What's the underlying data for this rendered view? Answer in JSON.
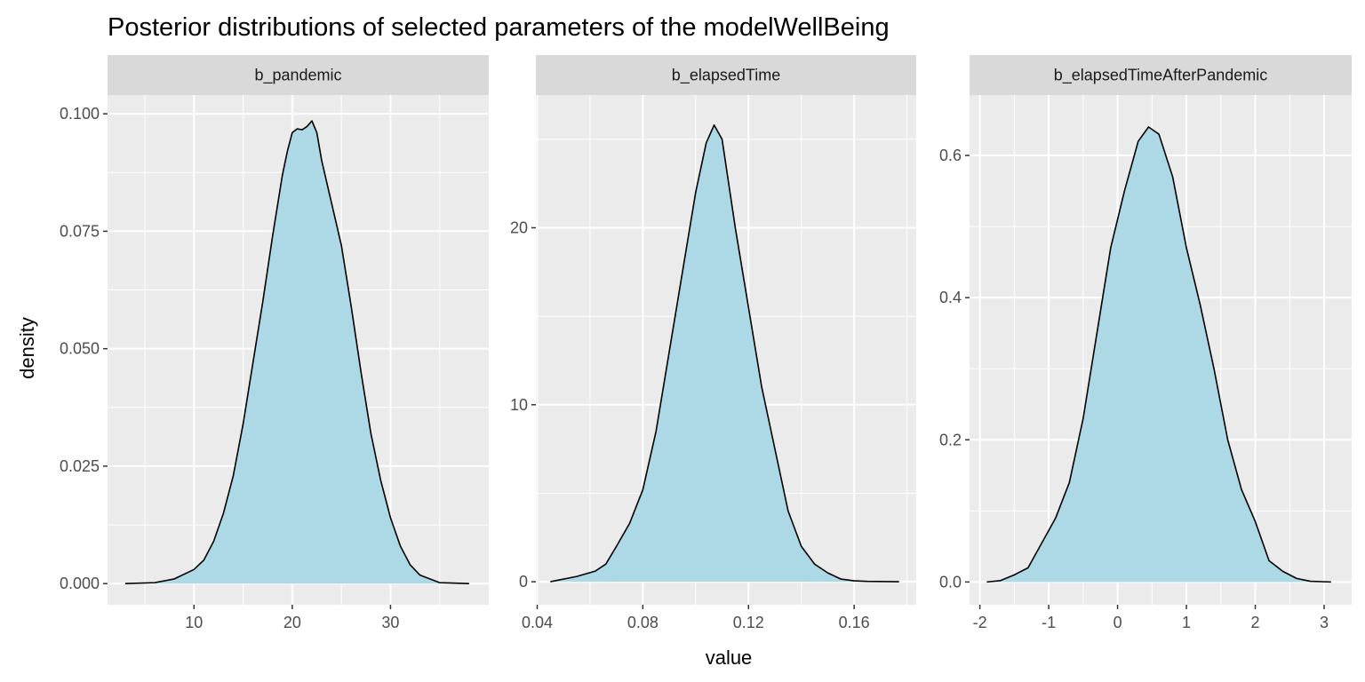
{
  "chart_data": {
    "type": "area",
    "title": "Posterior distributions of selected parameters of the modelWellBeing",
    "xlabel": "value",
    "ylabel": "density",
    "grid": true,
    "fill_color": "#ADD8E6",
    "line_color": "#000000",
    "panel_background": "#EBEBEB",
    "strip_background": "#D9D9D9",
    "facets": [
      {
        "label": "b_pandemic",
        "xlim": [
          1.2,
          40.0
        ],
        "ylim": [
          -0.0045,
          0.104
        ],
        "x_ticks": [
          10,
          20,
          30
        ],
        "x_tick_labels": [
          "10",
          "20",
          "30"
        ],
        "y_ticks": [
          0,
          0.025,
          0.05,
          0.075,
          0.1
        ],
        "y_tick_labels": [
          "0.000",
          "0.025",
          "0.050",
          "0.075",
          "0.100"
        ],
        "points": [
          [
            3.0,
            0.0
          ],
          [
            6.0,
            0.0002
          ],
          [
            8.0,
            0.001
          ],
          [
            10.0,
            0.003
          ],
          [
            11.0,
            0.005
          ],
          [
            12.0,
            0.009
          ],
          [
            13.0,
            0.015
          ],
          [
            14.0,
            0.023
          ],
          [
            15.0,
            0.034
          ],
          [
            16.0,
            0.047
          ],
          [
            17.0,
            0.06
          ],
          [
            18.0,
            0.074
          ],
          [
            19.0,
            0.087
          ],
          [
            19.5,
            0.092
          ],
          [
            20.0,
            0.096
          ],
          [
            20.5,
            0.0968
          ],
          [
            21.0,
            0.0966
          ],
          [
            21.5,
            0.0973
          ],
          [
            22.0,
            0.0985
          ],
          [
            22.5,
            0.096
          ],
          [
            23.0,
            0.09
          ],
          [
            24.0,
            0.081
          ],
          [
            25.0,
            0.072
          ],
          [
            26.0,
            0.059
          ],
          [
            27.0,
            0.045
          ],
          [
            28.0,
            0.032
          ],
          [
            29.0,
            0.022
          ],
          [
            30.0,
            0.014
          ],
          [
            31.0,
            0.008
          ],
          [
            32.0,
            0.004
          ],
          [
            33.0,
            0.0018
          ],
          [
            34.0,
            0.001
          ],
          [
            35.0,
            0.0002
          ],
          [
            38.0,
            0.0
          ]
        ]
      },
      {
        "label": "b_elapsedTime",
        "xlim": [
          0.0395,
          0.1835
        ],
        "ylim": [
          -1.3,
          27.5
        ],
        "x_ticks": [
          0.04,
          0.08,
          0.12,
          0.16
        ],
        "x_tick_labels": [
          "0.04",
          "0.08",
          "0.12",
          "0.16"
        ],
        "y_ticks": [
          0,
          10,
          20
        ],
        "y_tick_labels": [
          "0",
          "10",
          "20"
        ],
        "points": [
          [
            0.045,
            0.0
          ],
          [
            0.055,
            0.3
          ],
          [
            0.062,
            0.6
          ],
          [
            0.066,
            1.0
          ],
          [
            0.07,
            2.0
          ],
          [
            0.075,
            3.3
          ],
          [
            0.08,
            5.2
          ],
          [
            0.085,
            8.5
          ],
          [
            0.09,
            13.0
          ],
          [
            0.095,
            17.5
          ],
          [
            0.1,
            22.0
          ],
          [
            0.104,
            24.8
          ],
          [
            0.107,
            25.8
          ],
          [
            0.11,
            25.0
          ],
          [
            0.115,
            20.0
          ],
          [
            0.12,
            15.5
          ],
          [
            0.125,
            11.0
          ],
          [
            0.13,
            7.5
          ],
          [
            0.135,
            4.0
          ],
          [
            0.14,
            2.0
          ],
          [
            0.145,
            1.0
          ],
          [
            0.15,
            0.5
          ],
          [
            0.155,
            0.15
          ],
          [
            0.16,
            0.05
          ],
          [
            0.165,
            0.02
          ],
          [
            0.177,
            0.0
          ]
        ]
      },
      {
        "label": "b_elapsedTimeAfterPandemic",
        "xlim": [
          -2.15,
          3.4
        ],
        "ylim": [
          -0.032,
          0.685
        ],
        "x_ticks": [
          -2,
          -1,
          0,
          1,
          2,
          3
        ],
        "x_tick_labels": [
          "-2",
          "-1",
          "0",
          "1",
          "2",
          "3"
        ],
        "y_ticks": [
          0,
          0.2,
          0.4,
          0.6
        ],
        "y_tick_labels": [
          "0.0",
          "0.2",
          "0.4",
          "0.6"
        ],
        "points": [
          [
            -1.9,
            0.0
          ],
          [
            -1.7,
            0.002
          ],
          [
            -1.5,
            0.01
          ],
          [
            -1.3,
            0.02
          ],
          [
            -1.1,
            0.055
          ],
          [
            -0.9,
            0.09
          ],
          [
            -0.7,
            0.14
          ],
          [
            -0.5,
            0.23
          ],
          [
            -0.3,
            0.35
          ],
          [
            -0.1,
            0.47
          ],
          [
            0.1,
            0.55
          ],
          [
            0.3,
            0.62
          ],
          [
            0.45,
            0.64
          ],
          [
            0.6,
            0.63
          ],
          [
            0.8,
            0.57
          ],
          [
            1.0,
            0.47
          ],
          [
            1.2,
            0.39
          ],
          [
            1.4,
            0.3
          ],
          [
            1.6,
            0.2
          ],
          [
            1.8,
            0.13
          ],
          [
            2.0,
            0.085
          ],
          [
            2.2,
            0.03
          ],
          [
            2.4,
            0.015
          ],
          [
            2.6,
            0.005
          ],
          [
            2.8,
            0.001
          ],
          [
            3.1,
            0.0
          ]
        ]
      }
    ]
  }
}
